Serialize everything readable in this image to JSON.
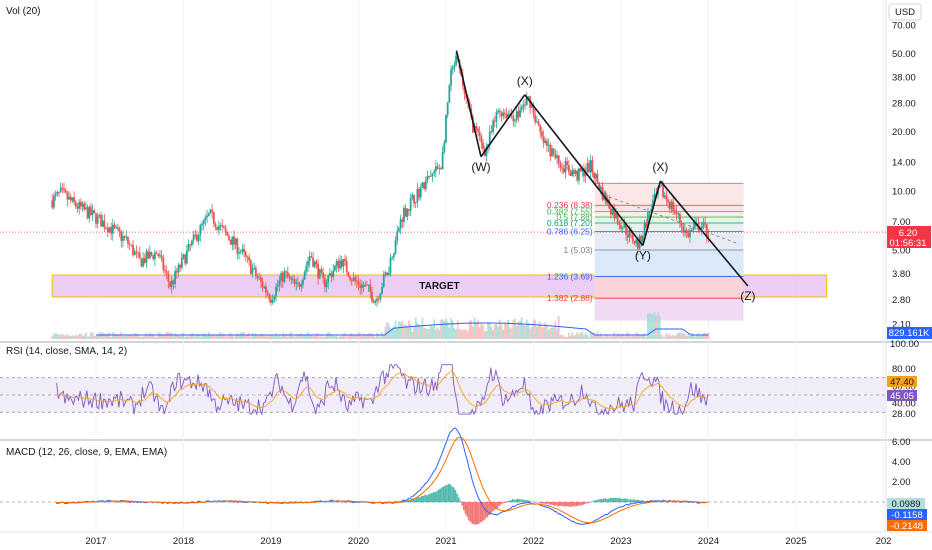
{
  "colors": {
    "candle_up": "#26a69a",
    "candle_down": "#ef5350",
    "rsi_line": "#7e57c2",
    "rsi_ma": "#f7a21b",
    "macd_line": "#2962ff",
    "macd_signal": "#ff6d00",
    "target_fill": "#e7c6f0",
    "target_border": "#f5c518",
    "price_badge": "#f23645",
    "volume_badge": "#2962ff"
  },
  "price_pane": {
    "indicator_label": "Vol (20)",
    "currency": "USD",
    "y_ticks": [
      "70.00",
      "50.00",
      "38.00",
      "28.00",
      "20.00",
      "14.00",
      "10.00",
      "7.00",
      "5.00",
      "3.80",
      "2.80",
      "2.10"
    ],
    "last_price": "6.20",
    "countdown": "01:56:31",
    "volume_value": "829.161K",
    "volume_axis_label": "100.00",
    "target_label": "TARGET",
    "wave_labels": [
      "(W)",
      "(X)",
      "(Y)",
      "(X)",
      "(Z)"
    ],
    "fib_levels": [
      {
        "label": "0.236 (8.38)",
        "color": "#f23645"
      },
      {
        "label": "0.382 (7.55)",
        "color": "#4caf50"
      },
      {
        "label": "0.5 (7.88)",
        "color": "#4caf50"
      },
      {
        "label": "0.618 (7.20)",
        "color": "#089981"
      },
      {
        "label": "0.786 (6.25)",
        "color": "#2962ff"
      },
      {
        "label": "1 (5.03)",
        "color": "#787b86"
      },
      {
        "label": "1.236 (3.69)",
        "color": "#2962ff"
      },
      {
        "label": "1.382 (2.86)",
        "color": "#f23645"
      }
    ]
  },
  "rsi_pane": {
    "label": "RSI (14, close, SMA, 14, 2)",
    "y_ticks": [
      "80.00",
      "60.00",
      "40.00",
      "28.00"
    ],
    "rsi_value": "45.05",
    "ma_value": "47.40"
  },
  "macd_pane": {
    "label": "MACD (12, 26, close, 9, EMA, EMA)",
    "y_ticks": [
      "6.00",
      "4.00",
      "2.00",
      "0.00",
      "-2.00"
    ],
    "hist_value": "0.0989",
    "macd_value": "-0.1158",
    "signal_value": "-0.2148"
  },
  "x_axis": {
    "labels": [
      "2017",
      "2018",
      "2019",
      "2020",
      "2021",
      "2022",
      "2023",
      "2024",
      "2025",
      "202"
    ]
  },
  "chart_data": {
    "type": "candlestick",
    "x_range": [
      "2016",
      "2026"
    ],
    "y_scale": "log",
    "price_ylim": [
      2.1,
      70
    ],
    "price_path": [
      {
        "t": 2016.5,
        "p": 9.0
      },
      {
        "t": 2016.6,
        "p": 9.8
      },
      {
        "t": 2016.75,
        "p": 8.6
      },
      {
        "t": 2016.95,
        "p": 7.6
      },
      {
        "t": 2017.15,
        "p": 6.6
      },
      {
        "t": 2017.35,
        "p": 5.6
      },
      {
        "t": 2017.5,
        "p": 4.4
      },
      {
        "t": 2017.7,
        "p": 4.9
      },
      {
        "t": 2017.85,
        "p": 3.3
      },
      {
        "t": 2018.0,
        "p": 4.5
      },
      {
        "t": 2018.15,
        "p": 6.0
      },
      {
        "t": 2018.3,
        "p": 7.6
      },
      {
        "t": 2018.45,
        "p": 6.3
      },
      {
        "t": 2018.65,
        "p": 5.0
      },
      {
        "t": 2018.85,
        "p": 3.6
      },
      {
        "t": 2019.0,
        "p": 2.9
      },
      {
        "t": 2019.15,
        "p": 3.8
      },
      {
        "t": 2019.3,
        "p": 3.2
      },
      {
        "t": 2019.45,
        "p": 4.8
      },
      {
        "t": 2019.6,
        "p": 3.4
      },
      {
        "t": 2019.8,
        "p": 4.5
      },
      {
        "t": 2019.95,
        "p": 3.5
      },
      {
        "t": 2020.1,
        "p": 3.2
      },
      {
        "t": 2020.2,
        "p": 2.8
      },
      {
        "t": 2020.35,
        "p": 4.2
      },
      {
        "t": 2020.5,
        "p": 7.6
      },
      {
        "t": 2020.65,
        "p": 9.5
      },
      {
        "t": 2020.8,
        "p": 11.5
      },
      {
        "t": 2020.95,
        "p": 13.8
      },
      {
        "t": 2021.05,
        "p": 38.0
      },
      {
        "t": 2021.12,
        "p": 47.0
      },
      {
        "t": 2021.3,
        "p": 22.0
      },
      {
        "t": 2021.45,
        "p": 16.0
      },
      {
        "t": 2021.6,
        "p": 26.0
      },
      {
        "t": 2021.8,
        "p": 24.0
      },
      {
        "t": 2021.95,
        "p": 30.0
      },
      {
        "t": 2022.1,
        "p": 18.0
      },
      {
        "t": 2022.3,
        "p": 14.0
      },
      {
        "t": 2022.5,
        "p": 12.0
      },
      {
        "t": 2022.65,
        "p": 13.5
      },
      {
        "t": 2022.8,
        "p": 9.5
      },
      {
        "t": 2022.95,
        "p": 7.4
      },
      {
        "t": 2023.1,
        "p": 6.0
      },
      {
        "t": 2023.2,
        "p": 5.3
      },
      {
        "t": 2023.35,
        "p": 8.5
      },
      {
        "t": 2023.45,
        "p": 10.2
      },
      {
        "t": 2023.6,
        "p": 8.2
      },
      {
        "t": 2023.75,
        "p": 6.0
      },
      {
        "t": 2023.9,
        "p": 6.8
      },
      {
        "t": 2024.0,
        "p": 6.2
      }
    ],
    "wave_points": [
      {
        "label": "",
        "t": 2021.12,
        "p": 52
      },
      {
        "label": "(W)",
        "t": 2021.4,
        "p": 15
      },
      {
        "label": "(X)",
        "t": 2021.9,
        "p": 31
      },
      {
        "label": "(Y)",
        "t": 2023.25,
        "p": 5.3
      },
      {
        "label": "(X)",
        "t": 2023.45,
        "p": 11.3
      },
      {
        "label": "(Z)",
        "t": 2024.45,
        "p": 3.3
      }
    ],
    "target_zone": {
      "t_start": 2016.5,
      "t_end": 2025.35,
      "p_low": 2.9,
      "p_high": 3.75
    },
    "fib_box": {
      "t_start": 2022.7,
      "t_end": 2024.4
    },
    "rsi": {
      "ylim": [
        20,
        90
      ],
      "overbought": 70,
      "oversold": 30,
      "last": 45.05,
      "ma_last": 47.4
    },
    "macd": {
      "ylim": [
        -2.6,
        6.8
      ],
      "peak": 6.2,
      "last_macd": -0.1158,
      "last_signal": -0.2148,
      "last_hist": 0.0989
    },
    "volume_last": "829.161K"
  }
}
